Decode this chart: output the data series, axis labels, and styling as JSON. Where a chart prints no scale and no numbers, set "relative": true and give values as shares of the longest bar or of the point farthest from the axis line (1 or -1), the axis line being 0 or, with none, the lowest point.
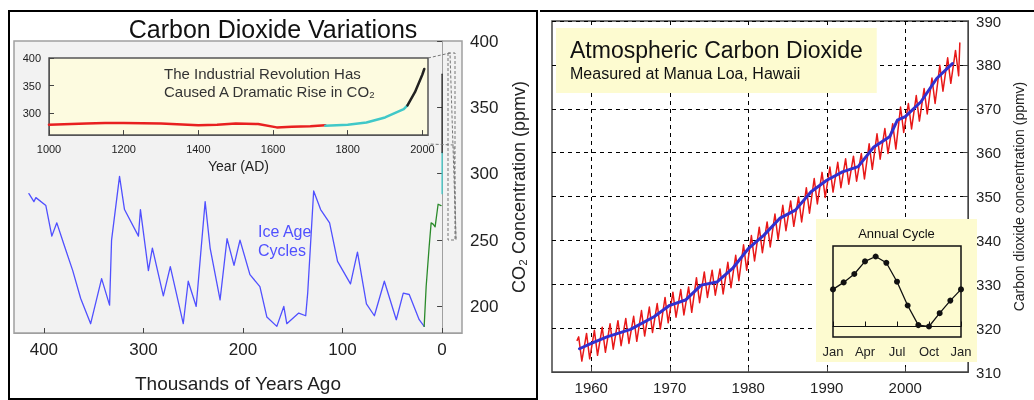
{
  "chart_data": [
    {
      "type": "line",
      "title": "Carbon Dioxide Variations",
      "xlabel": "Thousands of Years Ago",
      "ylabel": "CO₂ Concentration (ppmv)",
      "xlim": [
        430,
        -20
      ],
      "xticks": [
        400,
        300,
        200,
        100,
        0
      ],
      "ylim": [
        180,
        400
      ],
      "yticks": [
        200,
        250,
        300,
        350,
        400
      ],
      "annotations": [
        "Ice Age Cycles"
      ],
      "series": [
        {
          "color": "#5050ff",
          "x": [
            415,
            410,
            408,
            398,
            392,
            387,
            380,
            371,
            363,
            353,
            342,
            334,
            332,
            324,
            319,
            305,
            303,
            295,
            291,
            280,
            273,
            260,
            255,
            247,
            238,
            233,
            223,
            216,
            209,
            203,
            193,
            183,
            176,
            166,
            159,
            156,
            144,
            137,
            135,
            129,
            122,
            113,
            105,
            92,
            85,
            76,
            68,
            58,
            46,
            39,
            33,
            23,
            18
          ],
          "values": [
            285,
            279,
            282,
            276,
            253,
            263,
            247,
            227,
            206,
            187,
            221,
            201,
            250,
            298,
            273,
            253,
            273,
            227,
            244,
            208,
            230,
            187,
            219,
            200,
            279,
            244,
            205,
            251,
            231,
            250,
            224,
            215,
            192,
            185,
            200,
            187,
            195,
            193,
            210,
            287,
            273,
            263,
            234,
            217,
            241,
            202,
            193,
            219,
            190,
            210,
            209,
            190,
            185
          ]
        },
        {
          "color": "#2a8a2a",
          "x": [
            18,
            16,
            13,
            11,
            9,
            7,
            4,
            1
          ],
          "values": [
            185,
            215,
            245,
            263,
            262,
            260,
            277,
            276
          ]
        },
        {
          "color": "#40c8c8",
          "x": [
            0,
            0
          ],
          "values": [
            285,
            316
          ]
        },
        {
          "color": "#222222",
          "x": [
            0,
            0
          ],
          "values": [
            316,
            375
          ]
        }
      ]
    },
    {
      "type": "line",
      "xlabel": "Year (AD)",
      "xlim": [
        1000,
        2015
      ],
      "xticks": [
        1000,
        1200,
        1400,
        1600,
        1800,
        2000
      ],
      "ylim": [
        260,
        400
      ],
      "yticks": [
        300,
        350,
        400
      ],
      "annotations": [
        "The Industrial Revolution Has Caused A Dramatic Rise in CO₂"
      ],
      "series": [
        {
          "color": "#e82020",
          "x": [
            1000,
            1100,
            1150,
            1200,
            1300,
            1400,
            1450,
            1500,
            1560,
            1610,
            1650,
            1700,
            1740
          ],
          "values": [
            279,
            281,
            282,
            282,
            281,
            278,
            279,
            281,
            280,
            274,
            275,
            276,
            278
          ]
        },
        {
          "color": "#40c8c8",
          "x": [
            1740,
            1800,
            1850,
            1900,
            1950,
            1960
          ],
          "values": [
            277,
            279,
            283,
            292,
            307,
            314
          ]
        },
        {
          "color": "#222222",
          "x": [
            1960,
            1980,
            2000,
            2005
          ],
          "values": [
            314,
            338,
            370,
            380
          ]
        }
      ]
    },
    {
      "type": "line",
      "title": "Atmospheric Carbon Dioxide",
      "subtitle": "Measured at Manua Loa, Hawaii",
      "ylabel": "Carbon dioxide concentration (ppmv)",
      "xlim": [
        1955,
        2008
      ],
      "xticks": [
        1960,
        1970,
        1980,
        1990,
        2000
      ],
      "ylim": [
        310,
        390
      ],
      "yticks": [
        310,
        320,
        330,
        340,
        350,
        360,
        370,
        380,
        390
      ],
      "grid": true,
      "series": [
        {
          "color": "#e81818",
          "x": [
            1958.2,
            1958.4,
            1958.8,
            1959.4,
            1959.8,
            1960.4,
            1960.8,
            1961.4,
            1961.8,
            1962.4,
            1962.8,
            1963.4,
            1963.8,
            1964.4,
            1964.8,
            1965.4,
            1965.8,
            1966.4,
            1966.8,
            1967.4,
            1967.8,
            1968.4,
            1968.8,
            1969.4,
            1969.8,
            1970.4,
            1970.8,
            1971.4,
            1971.8,
            1972.4,
            1972.8,
            1973.4,
            1973.8,
            1974.4,
            1974.8,
            1975.4,
            1975.8,
            1976.4,
            1976.8,
            1977.4,
            1977.8,
            1978.4,
            1978.8,
            1979.4,
            1979.8,
            1980.4,
            1980.8,
            1981.4,
            1981.8,
            1982.4,
            1982.8,
            1983.4,
            1983.8,
            1984.4,
            1984.8,
            1985.4,
            1985.8,
            1986.4,
            1986.8,
            1987.4,
            1987.8,
            1988.4,
            1988.8,
            1989.4,
            1989.8,
            1990.4,
            1990.8,
            1991.4,
            1991.8,
            1992.4,
            1992.8,
            1993.4,
            1993.8,
            1994.4,
            1994.8,
            1995.4,
            1995.8,
            1996.4,
            1996.8,
            1997.4,
            1997.8,
            1998.4,
            1998.8,
            1999.4,
            1999.8,
            2000.4,
            2000.8,
            2001.4,
            2001.8,
            2002.4,
            2002.8,
            2003.4,
            2003.8,
            2004.4,
            2004.8,
            2005.4,
            2005.8,
            2006.4,
            2006.8,
            2006.95
          ],
          "values": [
            317.2,
            318.0,
            312.5,
            318.8,
            313.0,
            319.5,
            313.8,
            320.2,
            314.5,
            321.0,
            315.2,
            321.7,
            316.0,
            322.2,
            316.5,
            322.7,
            317.0,
            324.0,
            318.2,
            324.8,
            319.0,
            325.6,
            319.8,
            327.0,
            321.2,
            328.2,
            322.5,
            328.8,
            323.0,
            329.4,
            323.6,
            331.5,
            325.8,
            332.8,
            327.0,
            333.2,
            327.5,
            333.5,
            327.8,
            335.0,
            329.2,
            336.6,
            330.8,
            339.0,
            333.2,
            341.1,
            335.3,
            343.0,
            337.2,
            344.2,
            338.5,
            346.0,
            340.2,
            348.0,
            342.2,
            349.0,
            343.2,
            349.9,
            344.2,
            352.0,
            346.2,
            354.1,
            348.3,
            355.5,
            349.8,
            356.7,
            351.0,
            357.8,
            352.0,
            358.6,
            352.8,
            359.2,
            353.5,
            359.8,
            354.0,
            362.0,
            356.2,
            364.3,
            358.5,
            365.5,
            359.8,
            366.6,
            360.8,
            370.4,
            364.6,
            371.2,
            365.4,
            373.0,
            367.2,
            374.6,
            368.8,
            377.0,
            371.2,
            379.9,
            374.0,
            381.6,
            375.8,
            383.3,
            377.5,
            385.0
          ]
        },
        {
          "color": "#3030d0",
          "x": [
            1958.5,
            1960,
            1962,
            1965,
            1968,
            1970,
            1972,
            1974,
            1976,
            1978,
            1980,
            1982,
            1984,
            1986,
            1988,
            1990,
            1992,
            1994,
            1996,
            1998,
            1999,
            2000,
            2002,
            2004,
            2006
          ],
          "values": [
            315.3,
            316.5,
            318,
            319.7,
            322.6,
            325.2,
            326.4,
            329.8,
            330.5,
            333.6,
            338.1,
            341.2,
            345,
            346.9,
            351.1,
            353.7,
            355.6,
            356.8,
            361.3,
            363.6,
            367.4,
            368.2,
            371.6,
            376.9,
            380.3
          ]
        }
      ]
    },
    {
      "type": "line",
      "title": "Annual Cycle",
      "relative": true,
      "marker": "circle",
      "categories": [
        "Jan",
        null,
        null,
        "Apr",
        null,
        null,
        "Jul",
        null,
        null,
        "Oct",
        null,
        null,
        "Jan"
      ],
      "series": [
        {
          "color": "#111111",
          "values": [
            0.53,
            0.63,
            0.75,
            0.93,
            1,
            0.91,
            0.64,
            0.3,
            0.02,
            0,
            0.19,
            0.37,
            0.53
          ]
        }
      ]
    }
  ]
}
